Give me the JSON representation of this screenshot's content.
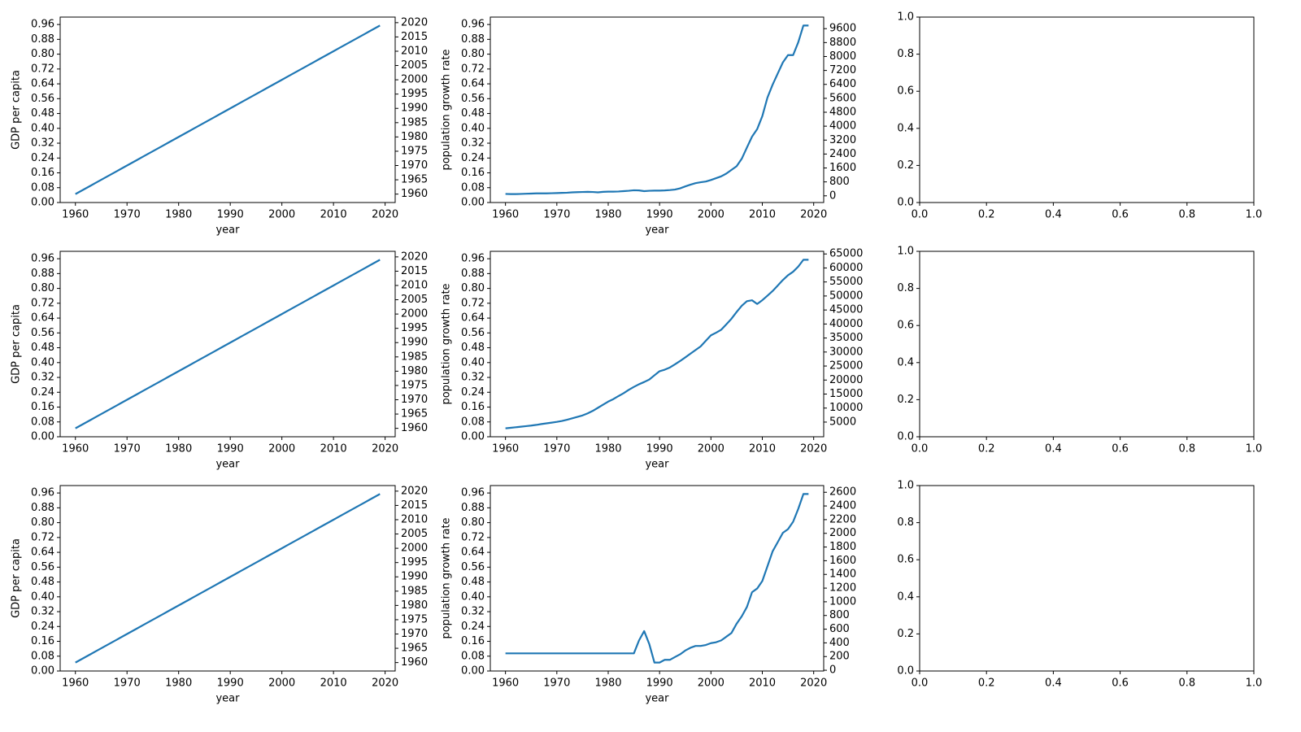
{
  "chart_data": [
    {
      "type": "line",
      "xlabel": "year",
      "ylabel": "GDP per capita",
      "color": "#1f77b4",
      "axis": "y2",
      "x": [
        1960,
        1961,
        1962,
        1963,
        1964,
        1965,
        1966,
        1967,
        1968,
        1969,
        1970,
        1971,
        1972,
        1973,
        1974,
        1975,
        1976,
        1977,
        1978,
        1979,
        1980,
        1981,
        1982,
        1983,
        1984,
        1985,
        1986,
        1987,
        1988,
        1989,
        1990,
        1991,
        1992,
        1993,
        1994,
        1995,
        1996,
        1997,
        1998,
        1999,
        2000,
        2001,
        2002,
        2003,
        2004,
        2005,
        2006,
        2007,
        2008,
        2009,
        2010,
        2011,
        2012,
        2013,
        2014,
        2015,
        2016,
        2017,
        2018,
        2019
      ],
      "values": [
        1960,
        1961,
        1962,
        1963,
        1964,
        1965,
        1966,
        1967,
        1968,
        1969,
        1970,
        1971,
        1972,
        1973,
        1974,
        1975,
        1976,
        1977,
        1978,
        1979,
        1980,
        1981,
        1982,
        1983,
        1984,
        1985,
        1986,
        1987,
        1988,
        1989,
        1990,
        1991,
        1992,
        1993,
        1994,
        1995,
        1996,
        1997,
        1998,
        1999,
        2000,
        2001,
        2002,
        2003,
        2004,
        2005,
        2006,
        2007,
        2008,
        2009,
        2010,
        2011,
        2012,
        2013,
        2014,
        2015,
        2016,
        2017,
        2018,
        2019
      ],
      "xlim": [
        1957.05,
        2021.95
      ],
      "xticks": [
        1960,
        1970,
        1980,
        1990,
        2000,
        2010,
        2020
      ],
      "ylim": [
        0,
        1
      ],
      "yticks": [
        {
          "value": 0,
          "label": "0.00"
        },
        0.08,
        0.16,
        0.24,
        0.32,
        {
          "value": 0.4,
          "label": "0.40"
        },
        0.48,
        0.56,
        0.64,
        0.72,
        {
          "value": 0.8,
          "label": "0.80"
        },
        0.88,
        0.96
      ],
      "y2lim": [
        1957.05,
        2021.95
      ],
      "y2ticks": [
        1960,
        1965,
        1970,
        1975,
        1980,
        1985,
        1990,
        1995,
        2000,
        2005,
        2010,
        2015,
        2020
      ]
    },
    {
      "type": "line",
      "xlabel": "year",
      "ylabel": "population growth rate",
      "color": "#1f77b4",
      "axis": "y2",
      "x": [
        1960,
        1961,
        1962,
        1963,
        1964,
        1965,
        1966,
        1967,
        1968,
        1969,
        1970,
        1971,
        1972,
        1973,
        1974,
        1975,
        1976,
        1977,
        1978,
        1979,
        1980,
        1981,
        1982,
        1983,
        1984,
        1985,
        1986,
        1987,
        1988,
        1989,
        1990,
        1991,
        1992,
        1993,
        1994,
        1995,
        1996,
        1997,
        1998,
        1999,
        2000,
        2001,
        2002,
        2003,
        2004,
        2005,
        2006,
        2007,
        2008,
        2009,
        2010,
        2011,
        2012,
        2013,
        2014,
        2015,
        2016,
        2017,
        2018,
        2019
      ],
      "values": [
        110,
        100,
        100,
        110,
        120,
        130,
        140,
        140,
        140,
        150,
        160,
        170,
        180,
        200,
        210,
        220,
        230,
        220,
        200,
        230,
        240,
        240,
        250,
        270,
        290,
        320,
        310,
        270,
        290,
        300,
        300,
        310,
        330,
        360,
        430,
        540,
        640,
        730,
        780,
        820,
        910,
        1015,
        1120,
        1280,
        1490,
        1700,
        2130,
        2770,
        3400,
        3830,
        4575,
        5640,
        6380,
        7020,
        7660,
        8080,
        8080,
        8820,
        9780,
        9780
      ],
      "xlim": [
        1957.05,
        2021.95
      ],
      "xticks": [
        1960,
        1970,
        1980,
        1990,
        2000,
        2010,
        2020
      ],
      "ylim": [
        0,
        1
      ],
      "yticks": [
        {
          "value": 0,
          "label": "0.00"
        },
        0.08,
        0.16,
        0.24,
        0.32,
        {
          "value": 0.4,
          "label": "0.40"
        },
        0.48,
        0.56,
        0.64,
        0.72,
        {
          "value": 0.8,
          "label": "0.80"
        },
        0.88,
        0.96
      ],
      "y2lim": [
        -384,
        10264
      ],
      "y2ticks": [
        0,
        800,
        1600,
        2400,
        3200,
        4000,
        4800,
        5600,
        6400,
        7200,
        8000,
        8800,
        9600
      ]
    },
    {
      "type": "line",
      "xlim": [
        0,
        1
      ],
      "ylim": [
        0,
        1
      ],
      "xticks": [
        {
          "value": 0,
          "label": "0.0"
        },
        0.2,
        0.4,
        0.6,
        0.8,
        {
          "value": 1,
          "label": "1.0"
        }
      ],
      "yticks": [
        {
          "value": 0,
          "label": "0.0"
        },
        0.2,
        0.4,
        0.6,
        0.8,
        {
          "value": 1,
          "label": "1.0"
        }
      ]
    },
    {
      "type": "line",
      "xlabel": "year",
      "ylabel": "GDP per capita",
      "color": "#1f77b4",
      "axis": "y2",
      "x": [
        1960,
        1961,
        1962,
        1963,
        1964,
        1965,
        1966,
        1967,
        1968,
        1969,
        1970,
        1971,
        1972,
        1973,
        1974,
        1975,
        1976,
        1977,
        1978,
        1979,
        1980,
        1981,
        1982,
        1983,
        1984,
        1985,
        1986,
        1987,
        1988,
        1989,
        1990,
        1991,
        1992,
        1993,
        1994,
        1995,
        1996,
        1997,
        1998,
        1999,
        2000,
        2001,
        2002,
        2003,
        2004,
        2005,
        2006,
        2007,
        2008,
        2009,
        2010,
        2011,
        2012,
        2013,
        2014,
        2015,
        2016,
        2017,
        2018,
        2019
      ],
      "values": [
        1960,
        1961,
        1962,
        1963,
        1964,
        1965,
        1966,
        1967,
        1968,
        1969,
        1970,
        1971,
        1972,
        1973,
        1974,
        1975,
        1976,
        1977,
        1978,
        1979,
        1980,
        1981,
        1982,
        1983,
        1984,
        1985,
        1986,
        1987,
        1988,
        1989,
        1990,
        1991,
        1992,
        1993,
        1994,
        1995,
        1996,
        1997,
        1998,
        1999,
        2000,
        2001,
        2002,
        2003,
        2004,
        2005,
        2006,
        2007,
        2008,
        2009,
        2010,
        2011,
        2012,
        2013,
        2014,
        2015,
        2016,
        2017,
        2018,
        2019
      ],
      "xlim": [
        1957.05,
        2021.95
      ],
      "xticks": [
        1960,
        1970,
        1980,
        1990,
        2000,
        2010,
        2020
      ],
      "ylim": [
        0,
        1
      ],
      "yticks": [
        {
          "value": 0,
          "label": "0.00"
        },
        0.08,
        0.16,
        0.24,
        0.32,
        {
          "value": 0.4,
          "label": "0.40"
        },
        0.48,
        0.56,
        0.64,
        0.72,
        {
          "value": 0.8,
          "label": "0.80"
        },
        0.88,
        0.96
      ],
      "y2lim": [
        1957.05,
        2021.95
      ],
      "y2ticks": [
        1960,
        1965,
        1970,
        1975,
        1980,
        1985,
        1990,
        1995,
        2000,
        2005,
        2010,
        2015,
        2020
      ]
    },
    {
      "type": "line",
      "xlabel": "year",
      "ylabel": "population growth rate",
      "color": "#1f77b4",
      "axis": "y2",
      "x": [
        1960,
        1961,
        1962,
        1963,
        1964,
        1965,
        1966,
        1967,
        1968,
        1969,
        1970,
        1971,
        1972,
        1973,
        1974,
        1975,
        1976,
        1977,
        1978,
        1979,
        1980,
        1981,
        1982,
        1983,
        1984,
        1985,
        1986,
        1987,
        1988,
        1989,
        1990,
        1991,
        1992,
        1993,
        1994,
        1995,
        1996,
        1997,
        1998,
        1999,
        2000,
        2001,
        2002,
        2003,
        2004,
        2005,
        2006,
        2007,
        2008,
        2009,
        2010,
        2011,
        2012,
        2013,
        2014,
        2015,
        2016,
        2017,
        2018,
        2019
      ],
      "values": [
        2770,
        2950,
        3150,
        3350,
        3550,
        3750,
        4000,
        4300,
        4550,
        4800,
        5070,
        5400,
        5850,
        6350,
        6850,
        7370,
        8100,
        9000,
        10100,
        11200,
        12300,
        13200,
        14280,
        15300,
        16500,
        17560,
        18500,
        19300,
        20190,
        21700,
        23150,
        23700,
        24470,
        25600,
        26800,
        28080,
        29400,
        30700,
        32030,
        34000,
        35970,
        36900,
        37950,
        39900,
        41890,
        44300,
        46500,
        48140,
        48470,
        47150,
        48500,
        50100,
        51760,
        53700,
        55700,
        57400,
        58660,
        60500,
        62930,
        62930
      ],
      "xlim": [
        1957.05,
        2021.95
      ],
      "xticks": [
        1960,
        1970,
        1980,
        1990,
        2000,
        2010,
        2020
      ],
      "ylim": [
        0,
        1
      ],
      "yticks": [
        {
          "value": 0,
          "label": "0.00"
        },
        0.08,
        0.16,
        0.24,
        0.32,
        {
          "value": 0.4,
          "label": "0.40"
        },
        0.48,
        0.56,
        0.64,
        0.72,
        {
          "value": 0.8,
          "label": "0.80"
        },
        0.88,
        0.96
      ],
      "y2lim": [
        -238,
        65938
      ],
      "y2ticks": [
        5000,
        10000,
        15000,
        20000,
        25000,
        30000,
        35000,
        40000,
        45000,
        50000,
        55000,
        60000,
        65000
      ]
    },
    {
      "type": "line",
      "xlim": [
        0,
        1
      ],
      "ylim": [
        0,
        1
      ],
      "xticks": [
        {
          "value": 0,
          "label": "0.0"
        },
        0.2,
        0.4,
        0.6,
        0.8,
        {
          "value": 1,
          "label": "1.0"
        }
      ],
      "yticks": [
        {
          "value": 0,
          "label": "0.0"
        },
        0.2,
        0.4,
        0.6,
        0.8,
        {
          "value": 1,
          "label": "1.0"
        }
      ]
    },
    {
      "type": "line",
      "xlabel": "year",
      "ylabel": "GDP per capita",
      "color": "#1f77b4",
      "axis": "y2",
      "x": [
        1960,
        1961,
        1962,
        1963,
        1964,
        1965,
        1966,
        1967,
        1968,
        1969,
        1970,
        1971,
        1972,
        1973,
        1974,
        1975,
        1976,
        1977,
        1978,
        1979,
        1980,
        1981,
        1982,
        1983,
        1984,
        1985,
        1986,
        1987,
        1988,
        1989,
        1990,
        1991,
        1992,
        1993,
        1994,
        1995,
        1996,
        1997,
        1998,
        1999,
        2000,
        2001,
        2002,
        2003,
        2004,
        2005,
        2006,
        2007,
        2008,
        2009,
        2010,
        2011,
        2012,
        2013,
        2014,
        2015,
        2016,
        2017,
        2018,
        2019
      ],
      "values": [
        1960,
        1961,
        1962,
        1963,
        1964,
        1965,
        1966,
        1967,
        1968,
        1969,
        1970,
        1971,
        1972,
        1973,
        1974,
        1975,
        1976,
        1977,
        1978,
        1979,
        1980,
        1981,
        1982,
        1983,
        1984,
        1985,
        1986,
        1987,
        1988,
        1989,
        1990,
        1991,
        1992,
        1993,
        1994,
        1995,
        1996,
        1997,
        1998,
        1999,
        2000,
        2001,
        2002,
        2003,
        2004,
        2005,
        2006,
        2007,
        2008,
        2009,
        2010,
        2011,
        2012,
        2013,
        2014,
        2015,
        2016,
        2017,
        2018,
        2019
      ],
      "xlim": [
        1957.05,
        2021.95
      ],
      "xticks": [
        1960,
        1970,
        1980,
        1990,
        2000,
        2010,
        2020
      ],
      "ylim": [
        0,
        1
      ],
      "yticks": [
        {
          "value": 0,
          "label": "0.00"
        },
        0.08,
        0.16,
        0.24,
        0.32,
        {
          "value": 0.4,
          "label": "0.40"
        },
        0.48,
        0.56,
        0.64,
        0.72,
        {
          "value": 0.8,
          "label": "0.80"
        },
        0.88,
        0.96
      ],
      "y2lim": [
        1957.05,
        2021.95
      ],
      "y2ticks": [
        1960,
        1965,
        1970,
        1975,
        1980,
        1985,
        1990,
        1995,
        2000,
        2005,
        2010,
        2015,
        2020
      ]
    },
    {
      "type": "line",
      "xlabel": "year",
      "ylabel": "population growth rate",
      "color": "#1f77b4",
      "axis": "y2",
      "x": [
        1960,
        1961,
        1962,
        1963,
        1964,
        1965,
        1966,
        1967,
        1968,
        1969,
        1970,
        1971,
        1972,
        1973,
        1974,
        1975,
        1976,
        1977,
        1978,
        1979,
        1980,
        1981,
        1982,
        1983,
        1984,
        1985,
        1986,
        1987,
        1988,
        1989,
        1990,
        1991,
        1992,
        1993,
        1994,
        1995,
        1996,
        1997,
        1998,
        1999,
        2000,
        2001,
        2002,
        2003,
        2004,
        2005,
        2006,
        2007,
        2008,
        2009,
        2010,
        2011,
        2012,
        2013,
        2014,
        2015,
        2016,
        2017,
        2018,
        2019
      ],
      "values": [
        247,
        247,
        247,
        247,
        247,
        247,
        247,
        247,
        247,
        247,
        247,
        247,
        247,
        247,
        247,
        247,
        247,
        247,
        247,
        247,
        247,
        247,
        247,
        247,
        247,
        247,
        436,
        572,
        382,
        112,
        112,
        152,
        152,
        193,
        233,
        288,
        328,
        355,
        355,
        369,
        396,
        409,
        436,
        490,
        545,
        680,
        788,
        924,
        1140,
        1194,
        1303,
        1519,
        1736,
        1871,
        2007,
        2061,
        2169,
        2358,
        2575,
        2575
      ],
      "xlim": [
        1957.05,
        2021.95
      ],
      "xticks": [
        1960,
        1970,
        1980,
        1990,
        2000,
        2010,
        2020
      ],
      "ylim": [
        0,
        1
      ],
      "yticks": [
        {
          "value": 0,
          "label": "0.00"
        },
        0.08,
        0.16,
        0.24,
        0.32,
        {
          "value": 0.4,
          "label": "0.40"
        },
        0.48,
        0.56,
        0.64,
        0.72,
        {
          "value": 0.8,
          "label": "0.80"
        },
        0.88,
        0.96
      ],
      "y2lim": [
        -11,
        2698
      ],
      "y2ticks": [
        0,
        200,
        400,
        600,
        800,
        1000,
        1200,
        1400,
        1600,
        1800,
        2000,
        2200,
        2400,
        2600
      ]
    },
    {
      "type": "line",
      "xlim": [
        0,
        1
      ],
      "ylim": [
        0,
        1
      ],
      "xticks": [
        {
          "value": 0,
          "label": "0.0"
        },
        0.2,
        0.4,
        0.6,
        0.8,
        {
          "value": 1,
          "label": "1.0"
        }
      ],
      "yticks": [
        {
          "value": 0,
          "label": "0.0"
        },
        0.2,
        0.4,
        0.6,
        0.8,
        {
          "value": 1,
          "label": "1.0"
        }
      ]
    }
  ]
}
